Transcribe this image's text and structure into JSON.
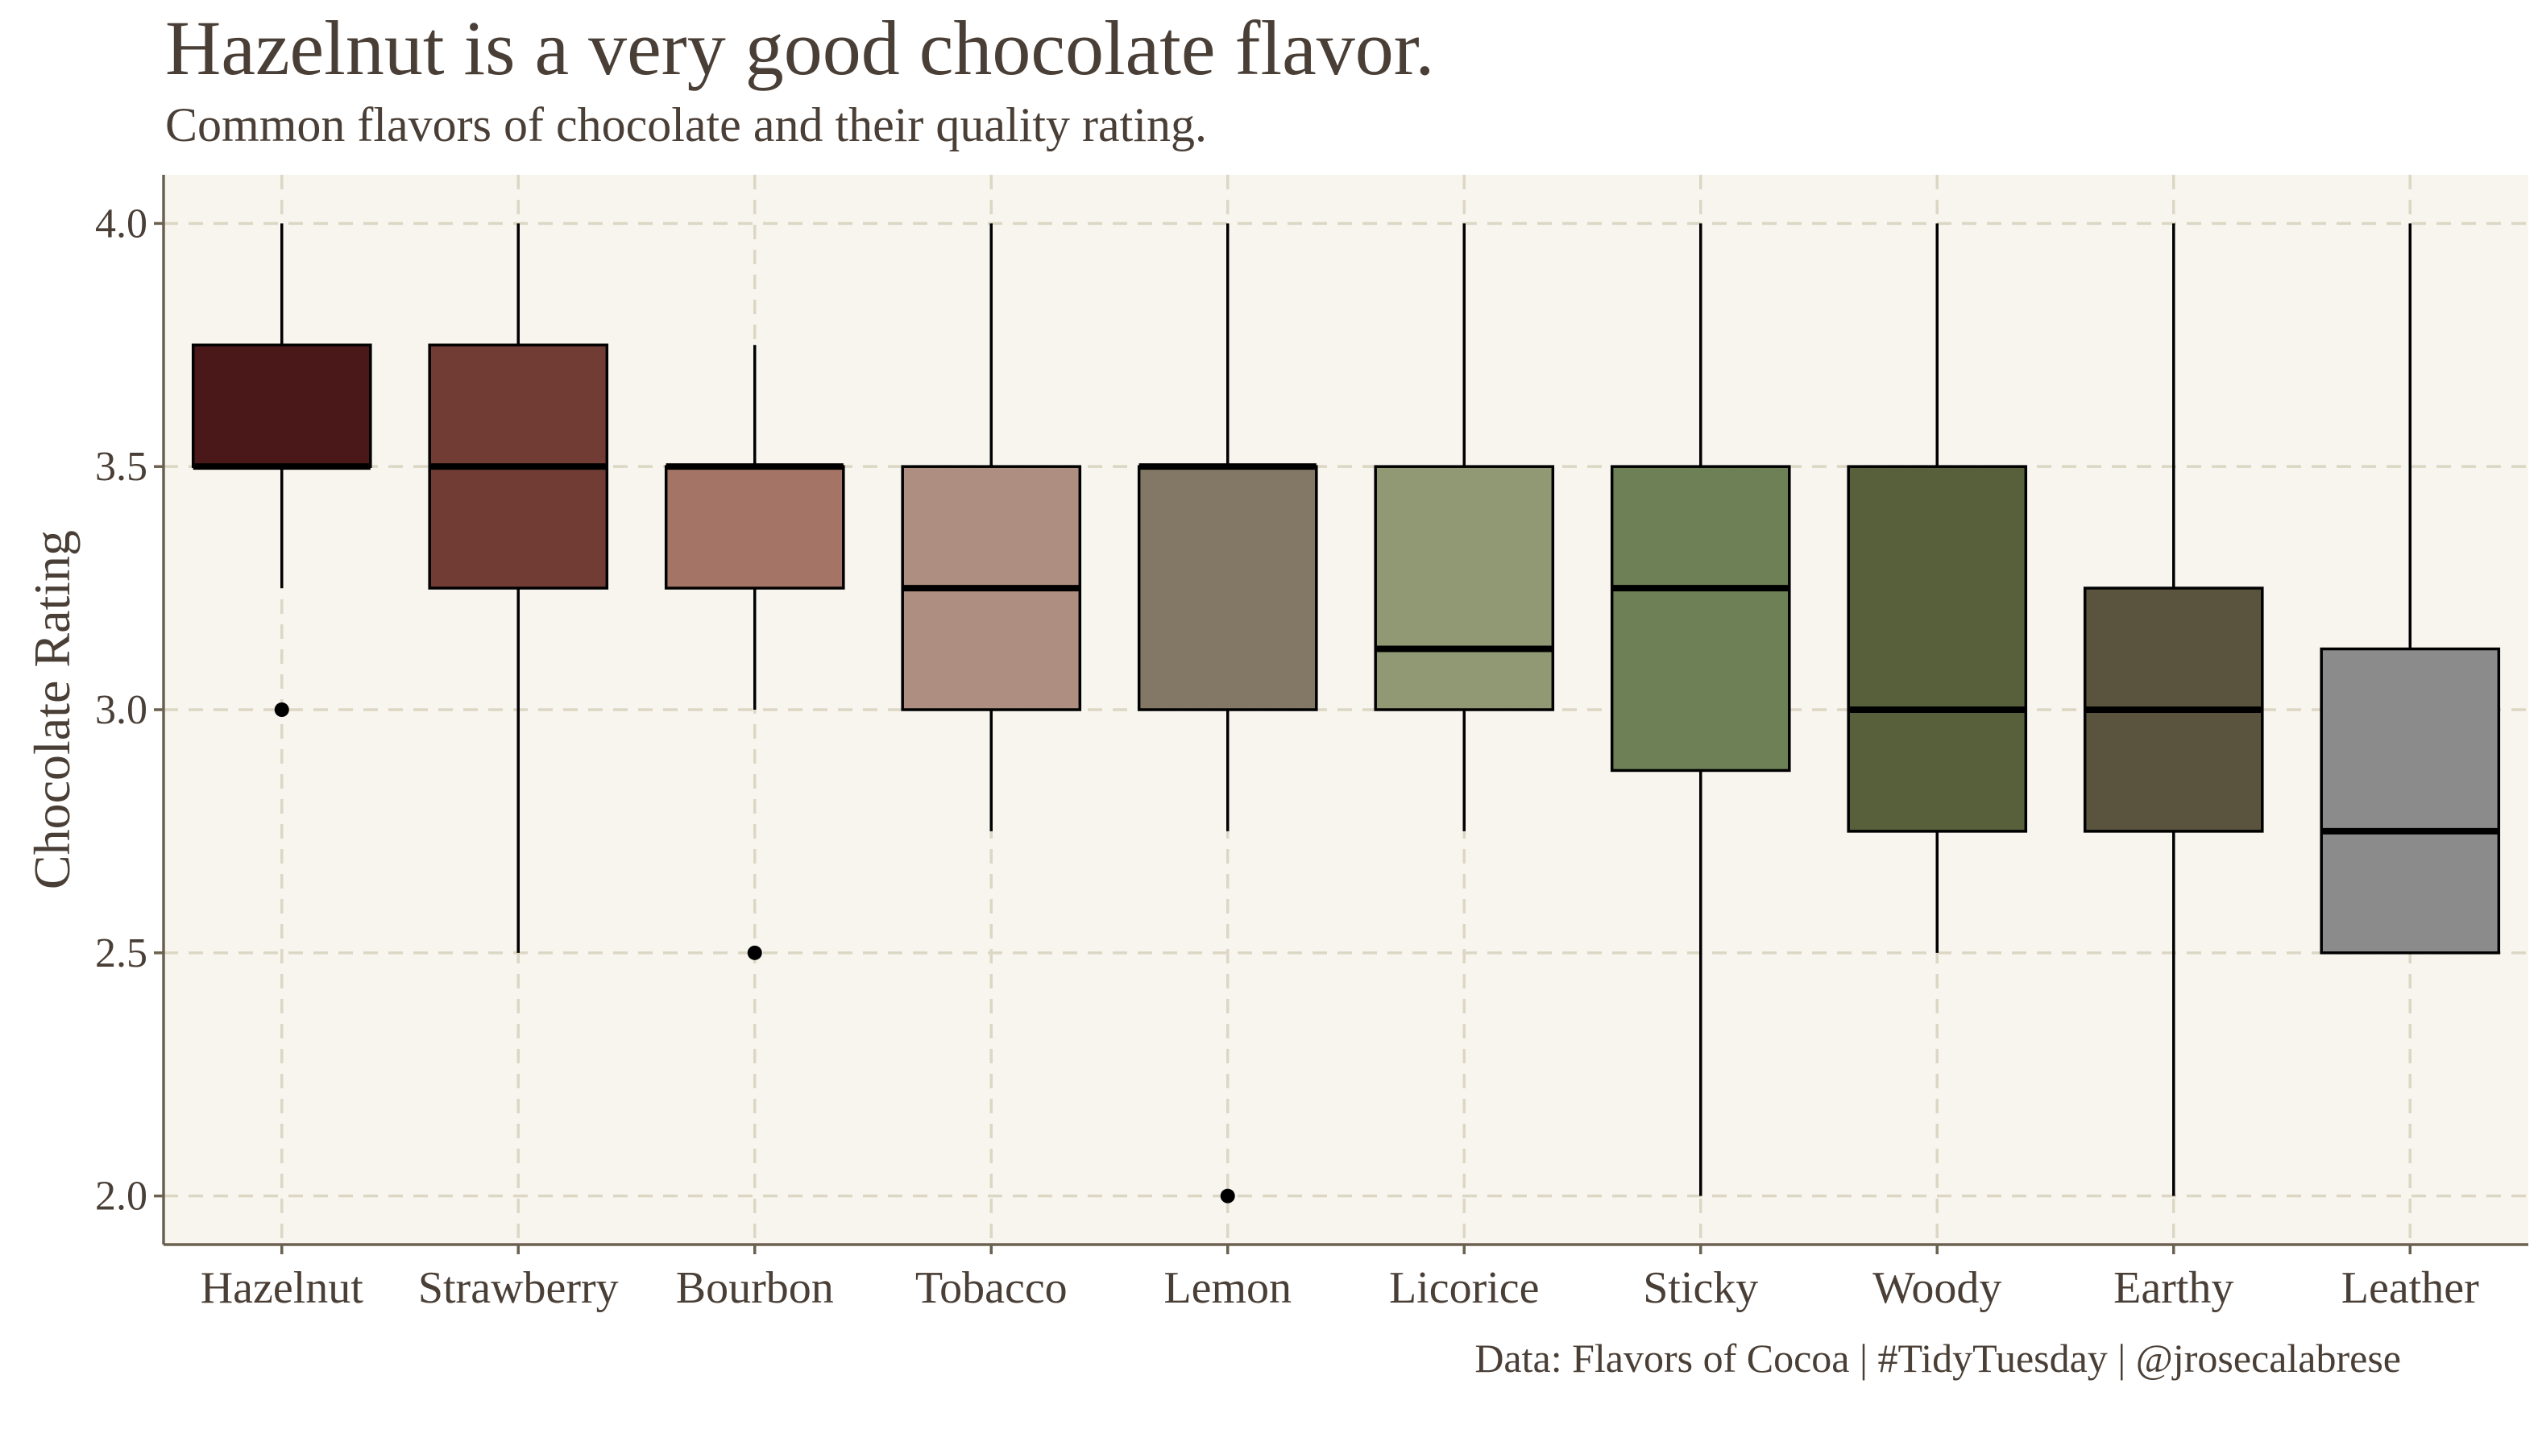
{
  "chart_data": {
    "type": "box",
    "title": "Hazelnut is a very good chocolate flavor.",
    "subtitle": "Common flavors of chocolate and their quality rating.",
    "ylabel": "Chocolate Rating",
    "xlabel": "",
    "ylim": [
      1.9,
      4.1
    ],
    "yticks": [
      "2.0",
      "2.5",
      "3.0",
      "3.5",
      "4.0"
    ],
    "grid": true,
    "caption": "Data: Flavors of Cocoa | #TidyTuesday | @jrosecalabrese",
    "categories": [
      "Hazelnut",
      "Strawberry",
      "Bourbon",
      "Tobacco",
      "Lemon",
      "Licorice",
      "Sticky",
      "Woody",
      "Earthy",
      "Leather"
    ],
    "boxes": [
      {
        "category": "Hazelnut",
        "whisker_low": 3.25,
        "q1": 3.5,
        "median": 3.5,
        "q3": 3.75,
        "whisker_high": 4.0,
        "outliers": [
          3.0
        ],
        "color": "#4a1818"
      },
      {
        "category": "Strawberry",
        "whisker_low": 2.5,
        "q1": 3.25,
        "median": 3.5,
        "q3": 3.75,
        "whisker_high": 4.0,
        "outliers": [],
        "color": "#703c34"
      },
      {
        "category": "Bourbon",
        "whisker_low": 3.0,
        "q1": 3.25,
        "median": 3.5,
        "q3": 3.5,
        "whisker_high": 3.75,
        "outliers": [
          2.5
        ],
        "color": "#a47566"
      },
      {
        "category": "Tobacco",
        "whisker_low": 2.75,
        "q1": 3.0,
        "median": 3.25,
        "q3": 3.5,
        "whisker_high": 4.0,
        "outliers": [],
        "color": "#ae8e80"
      },
      {
        "category": "Lemon",
        "whisker_low": 2.75,
        "q1": 3.0,
        "median": 3.5,
        "q3": 3.5,
        "whisker_high": 4.0,
        "outliers": [
          2.0
        ],
        "color": "#837866"
      },
      {
        "category": "Licorice",
        "whisker_low": 2.75,
        "q1": 3.0,
        "median": 3.125,
        "q3": 3.5,
        "whisker_high": 4.0,
        "outliers": [],
        "color": "#909973"
      },
      {
        "category": "Sticky",
        "whisker_low": 2.0,
        "q1": 2.875,
        "median": 3.25,
        "q3": 3.5,
        "whisker_high": 4.0,
        "outliers": [],
        "color": "#6e8055"
      },
      {
        "category": "Woody",
        "whisker_low": 2.5,
        "q1": 2.75,
        "median": 3.0,
        "q3": 3.5,
        "whisker_high": 4.0,
        "outliers": [],
        "color": "#575f3b"
      },
      {
        "category": "Earthy",
        "whisker_low": 2.0,
        "q1": 2.75,
        "median": 3.0,
        "q3": 3.25,
        "whisker_high": 4.0,
        "outliers": [],
        "color": "#5a533d"
      },
      {
        "category": "Leather",
        "whisker_low": 2.5,
        "q1": 2.5,
        "median": 2.75,
        "q3": 3.125,
        "whisker_high": 4.0,
        "outliers": [],
        "color": "#8b8b8b"
      }
    ],
    "colors": {
      "panel_background": "#f8f5ef",
      "grid": "#dcd6c4",
      "axis": "#6b6150",
      "text": "#4a3f36",
      "box_outline": "#000000",
      "median": "#000000"
    }
  }
}
